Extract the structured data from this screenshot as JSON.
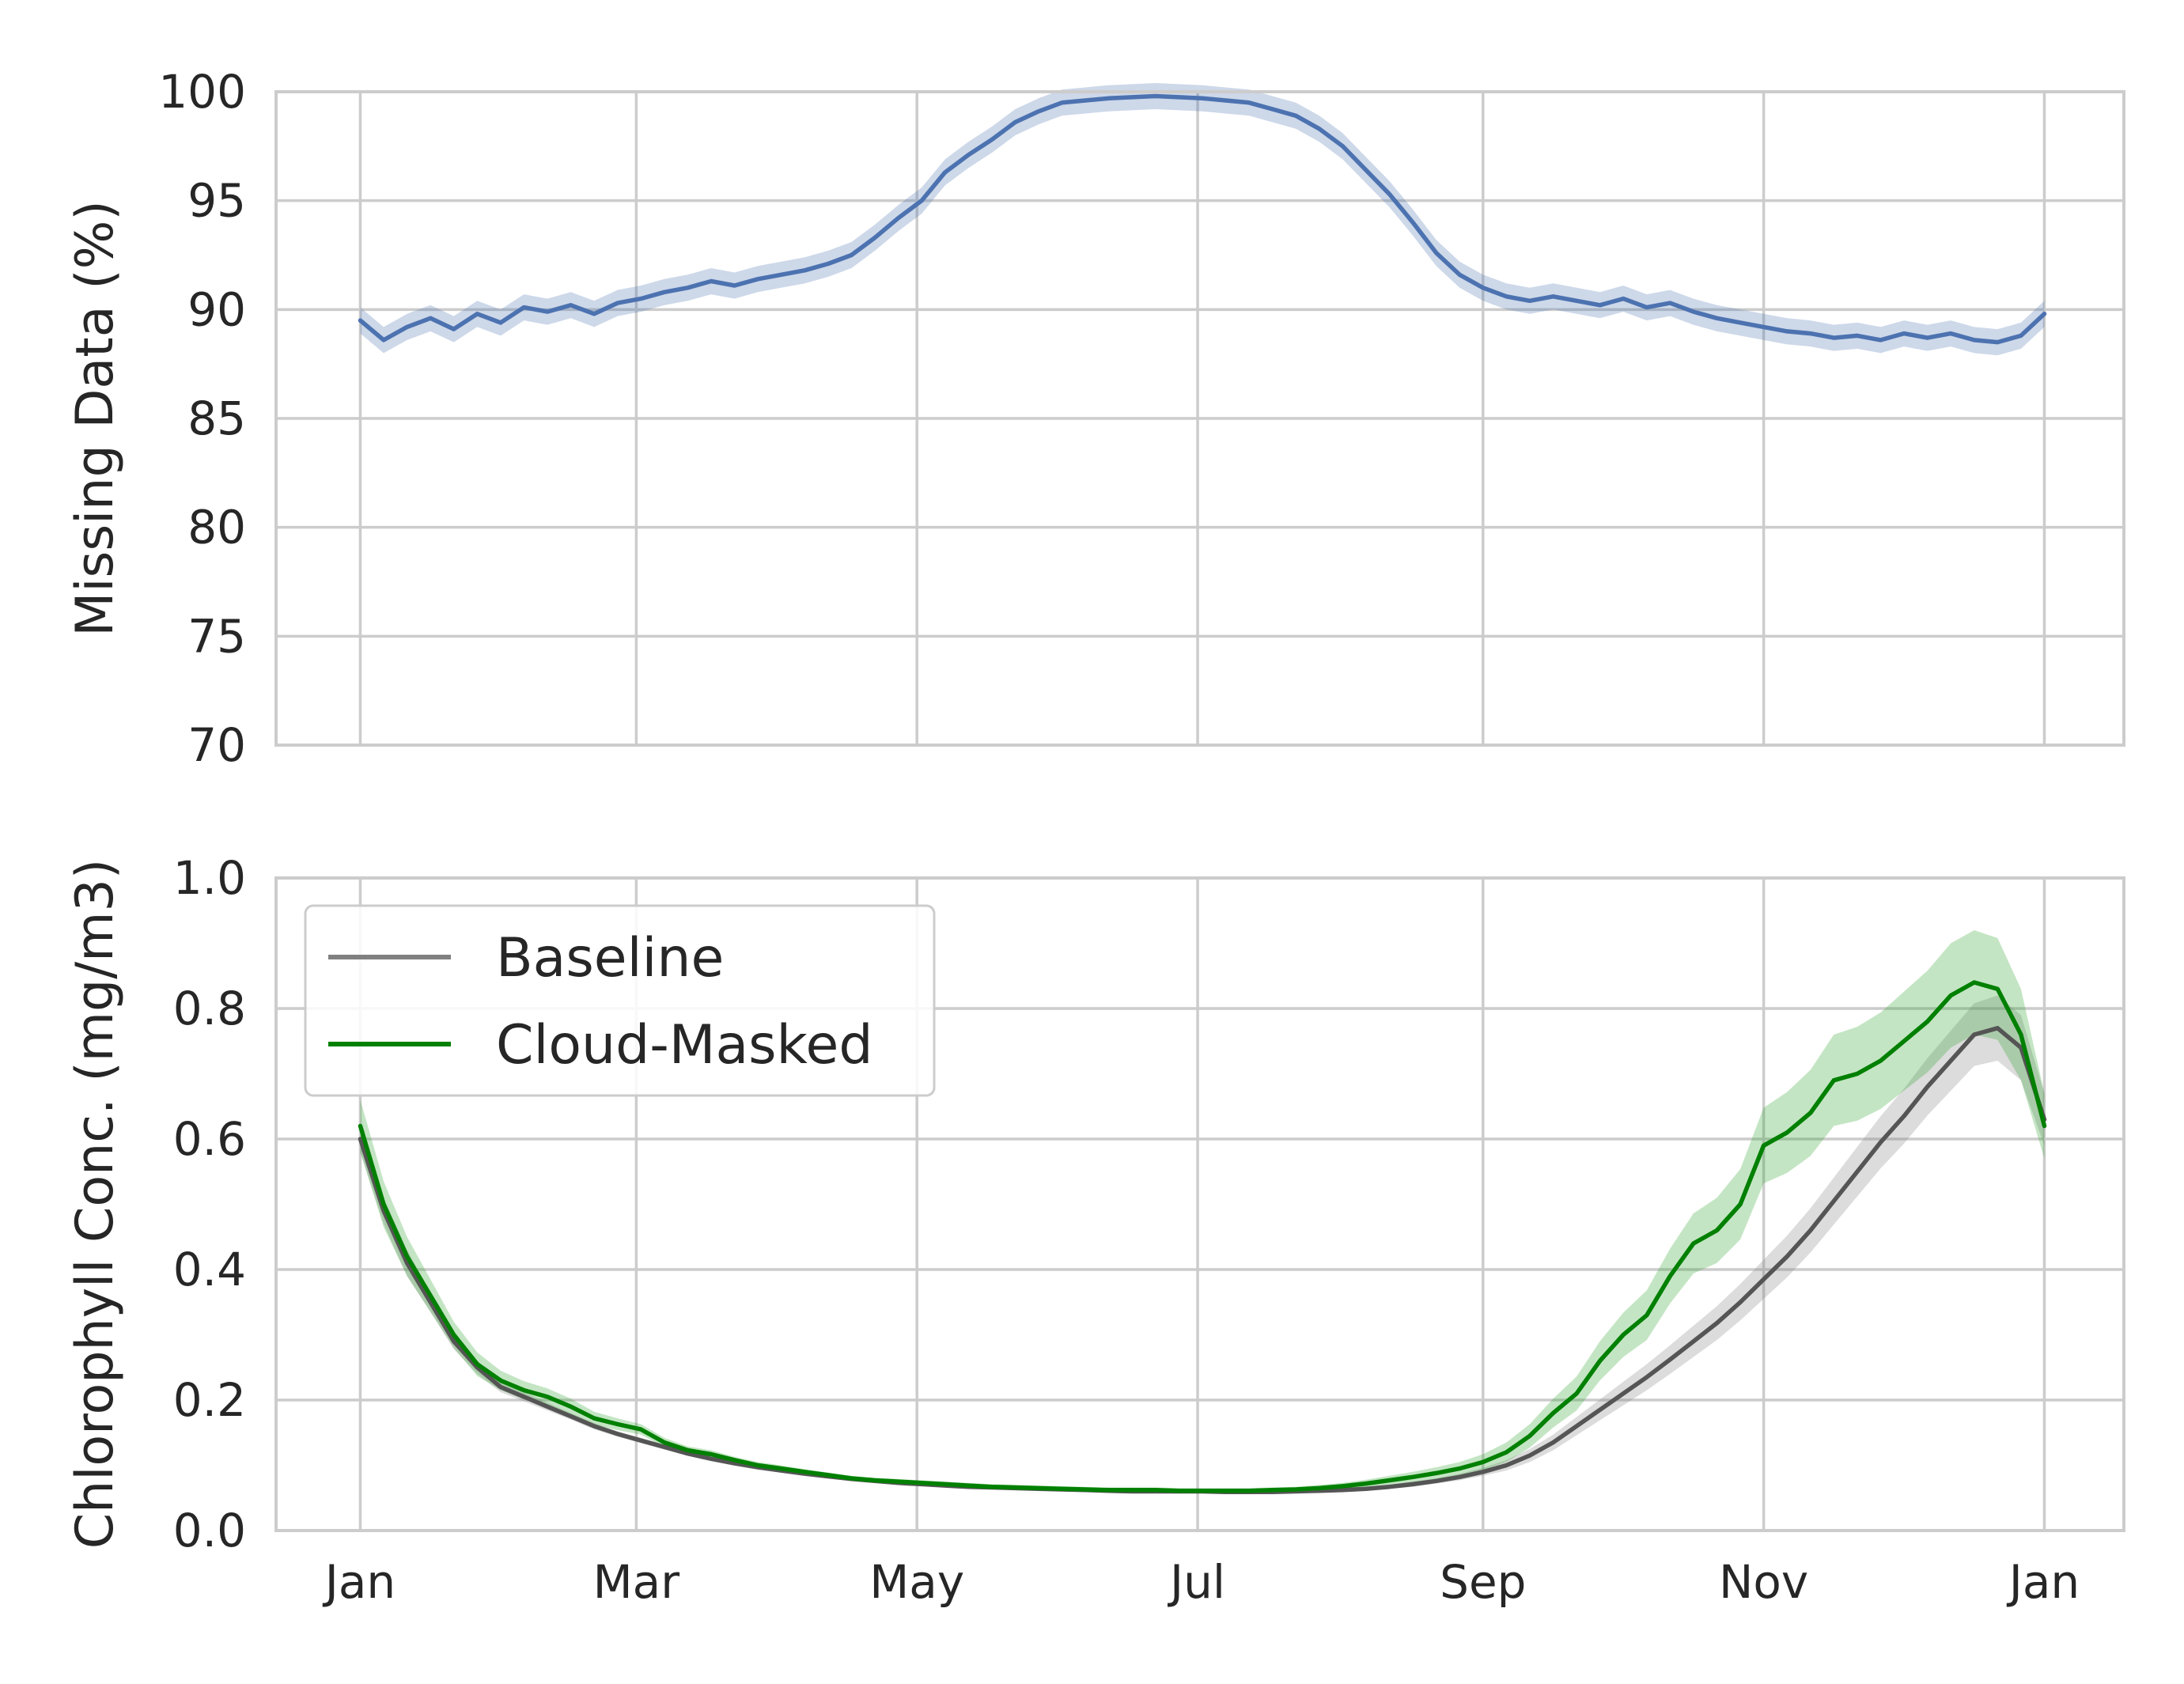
{
  "chart_data": [
    {
      "type": "line",
      "ylabel": "Missing Data (%)",
      "xlabel": "",
      "ylim": [
        70,
        100
      ],
      "yticks": [
        70,
        75,
        80,
        85,
        90,
        95,
        100
      ],
      "x_ticks": [
        "Jan",
        "Mar",
        "May",
        "Jul",
        "Sep",
        "Nov",
        "Jan"
      ],
      "x_tick_days": [
        0,
        59,
        119,
        179,
        240,
        300,
        360
      ],
      "x_range_days": [
        -18,
        377
      ],
      "grid": true,
      "series": [
        {
          "color": "#4c72b0",
          "band_halfwidth": 0.6,
          "x": [
            0,
            5,
            10,
            15,
            20,
            25,
            30,
            35,
            40,
            45,
            50,
            55,
            60,
            65,
            70,
            75,
            80,
            85,
            90,
            95,
            100,
            105,
            110,
            115,
            120,
            125,
            130,
            135,
            140,
            145,
            150,
            155,
            160,
            165,
            170,
            175,
            180,
            185,
            190,
            195,
            200,
            205,
            210,
            215,
            220,
            225,
            230,
            235,
            240,
            245,
            250,
            255,
            260,
            265,
            270,
            275,
            280,
            285,
            290,
            295,
            300,
            305,
            310,
            315,
            320,
            325,
            330,
            335,
            340,
            345,
            350,
            355,
            360
          ],
          "values": [
            89.5,
            88.6,
            89.2,
            89.6,
            89.1,
            89.8,
            89.4,
            90.1,
            89.9,
            90.2,
            89.8,
            90.3,
            90.5,
            90.8,
            91.0,
            91.3,
            91.1,
            91.4,
            91.6,
            91.8,
            92.1,
            92.5,
            93.3,
            94.2,
            95.0,
            96.3,
            97.1,
            97.8,
            98.6,
            99.1,
            99.5,
            99.6,
            99.7,
            99.75,
            99.8,
            99.75,
            99.7,
            99.6,
            99.5,
            99.2,
            98.9,
            98.3,
            97.5,
            96.4,
            95.3,
            94.0,
            92.6,
            91.6,
            91.0,
            90.6,
            90.4,
            90.6,
            90.4,
            90.2,
            90.5,
            90.1,
            90.3,
            89.9,
            89.6,
            89.4,
            89.2,
            89.0,
            88.9,
            88.7,
            88.8,
            88.6,
            88.9,
            88.7,
            88.9,
            88.6,
            88.5,
            88.8,
            89.8
          ]
        }
      ]
    },
    {
      "type": "line",
      "ylabel": "Chlorophyll Conc. (mg/m3)",
      "xlabel": "",
      "ylim": [
        0.0,
        1.0
      ],
      "yticks": [
        "0.0",
        "0.2",
        "0.4",
        "0.6",
        "0.8",
        "1.0"
      ],
      "x_ticks": [
        "Jan",
        "Mar",
        "May",
        "Jul",
        "Sep",
        "Nov",
        "Jan"
      ],
      "x_tick_days": [
        0,
        59,
        119,
        179,
        240,
        300,
        360
      ],
      "x_range_days": [
        -18,
        377
      ],
      "grid": true,
      "legend": "top-left",
      "series": [
        {
          "name": "Baseline",
          "color": "#555555",
          "legend_color": "#808080",
          "band_color": "#808080",
          "x": [
            0,
            5,
            10,
            15,
            20,
            25,
            30,
            35,
            40,
            45,
            50,
            55,
            60,
            65,
            70,
            75,
            80,
            85,
            90,
            95,
            100,
            105,
            110,
            115,
            120,
            125,
            130,
            135,
            140,
            145,
            150,
            155,
            160,
            165,
            170,
            175,
            180,
            185,
            190,
            195,
            200,
            205,
            210,
            215,
            220,
            225,
            230,
            235,
            240,
            245,
            250,
            255,
            260,
            265,
            270,
            275,
            280,
            285,
            290,
            295,
            300,
            305,
            310,
            315,
            320,
            325,
            330,
            335,
            340,
            345,
            350,
            355,
            360
          ],
          "values": [
            0.6,
            0.49,
            0.41,
            0.35,
            0.29,
            0.25,
            0.22,
            0.205,
            0.19,
            0.175,
            0.16,
            0.148,
            0.138,
            0.128,
            0.118,
            0.11,
            0.103,
            0.097,
            0.092,
            0.087,
            0.083,
            0.079,
            0.076,
            0.073,
            0.071,
            0.069,
            0.067,
            0.066,
            0.065,
            0.064,
            0.063,
            0.062,
            0.061,
            0.06,
            0.06,
            0.06,
            0.06,
            0.059,
            0.059,
            0.059,
            0.06,
            0.061,
            0.062,
            0.064,
            0.067,
            0.071,
            0.076,
            0.082,
            0.09,
            0.1,
            0.115,
            0.135,
            0.16,
            0.185,
            0.21,
            0.235,
            0.262,
            0.29,
            0.318,
            0.35,
            0.385,
            0.42,
            0.46,
            0.505,
            0.55,
            0.595,
            0.635,
            0.68,
            0.72,
            0.76,
            0.77,
            0.74,
            0.63
          ],
          "band": [
            0.02,
            0.02,
            0.02,
            0.015,
            0.012,
            0.01,
            0.008,
            0.007,
            0.006,
            0.005,
            0.005,
            0.004,
            0.004,
            0.004,
            0.003,
            0.003,
            0.003,
            0.003,
            0.003,
            0.003,
            0.003,
            0.003,
            0.003,
            0.003,
            0.003,
            0.003,
            0.003,
            0.003,
            0.003,
            0.003,
            0.003,
            0.003,
            0.003,
            0.003,
            0.003,
            0.003,
            0.003,
            0.003,
            0.003,
            0.003,
            0.003,
            0.003,
            0.003,
            0.003,
            0.003,
            0.004,
            0.004,
            0.005,
            0.006,
            0.008,
            0.01,
            0.012,
            0.014,
            0.016,
            0.018,
            0.02,
            0.022,
            0.024,
            0.026,
            0.028,
            0.03,
            0.032,
            0.034,
            0.036,
            0.038,
            0.04,
            0.042,
            0.044,
            0.046,
            0.048,
            0.05,
            0.05,
            0.04
          ]
        },
        {
          "name": "Cloud-Masked",
          "color": "#008000",
          "band_color": "#2ca02c",
          "x": [
            0,
            5,
            10,
            15,
            20,
            25,
            30,
            35,
            40,
            45,
            50,
            55,
            60,
            65,
            70,
            75,
            80,
            85,
            90,
            95,
            100,
            105,
            110,
            115,
            120,
            125,
            130,
            135,
            140,
            145,
            150,
            155,
            160,
            165,
            170,
            175,
            180,
            185,
            190,
            195,
            200,
            205,
            210,
            215,
            220,
            225,
            230,
            235,
            240,
            245,
            250,
            255,
            260,
            265,
            270,
            275,
            280,
            285,
            290,
            295,
            300,
            305,
            310,
            315,
            320,
            325,
            330,
            335,
            340,
            345,
            350,
            355,
            360
          ],
          "values": [
            0.62,
            0.5,
            0.42,
            0.36,
            0.3,
            0.255,
            0.23,
            0.215,
            0.205,
            0.19,
            0.172,
            0.163,
            0.155,
            0.135,
            0.123,
            0.117,
            0.108,
            0.1,
            0.095,
            0.09,
            0.085,
            0.08,
            0.077,
            0.075,
            0.073,
            0.071,
            0.069,
            0.067,
            0.066,
            0.065,
            0.064,
            0.063,
            0.062,
            0.062,
            0.062,
            0.061,
            0.061,
            0.061,
            0.061,
            0.062,
            0.063,
            0.065,
            0.068,
            0.072,
            0.077,
            0.082,
            0.088,
            0.095,
            0.105,
            0.12,
            0.145,
            0.18,
            0.21,
            0.26,
            0.3,
            0.33,
            0.39,
            0.44,
            0.46,
            0.5,
            0.59,
            0.61,
            0.64,
            0.69,
            0.7,
            0.72,
            0.75,
            0.78,
            0.82,
            0.84,
            0.83,
            0.76,
            0.62
          ],
          "band": [
            0.04,
            0.035,
            0.03,
            0.025,
            0.02,
            0.018,
            0.015,
            0.014,
            0.013,
            0.012,
            0.01,
            0.009,
            0.008,
            0.007,
            0.006,
            0.006,
            0.005,
            0.005,
            0.005,
            0.004,
            0.004,
            0.004,
            0.004,
            0.004,
            0.004,
            0.004,
            0.004,
            0.004,
            0.004,
            0.004,
            0.004,
            0.004,
            0.004,
            0.004,
            0.004,
            0.004,
            0.004,
            0.004,
            0.004,
            0.004,
            0.004,
            0.005,
            0.005,
            0.006,
            0.007,
            0.008,
            0.009,
            0.01,
            0.012,
            0.015,
            0.018,
            0.022,
            0.026,
            0.03,
            0.034,
            0.038,
            0.042,
            0.046,
            0.05,
            0.054,
            0.058,
            0.062,
            0.066,
            0.07,
            0.072,
            0.074,
            0.076,
            0.078,
            0.08,
            0.08,
            0.078,
            0.07,
            0.05
          ]
        }
      ]
    }
  ]
}
